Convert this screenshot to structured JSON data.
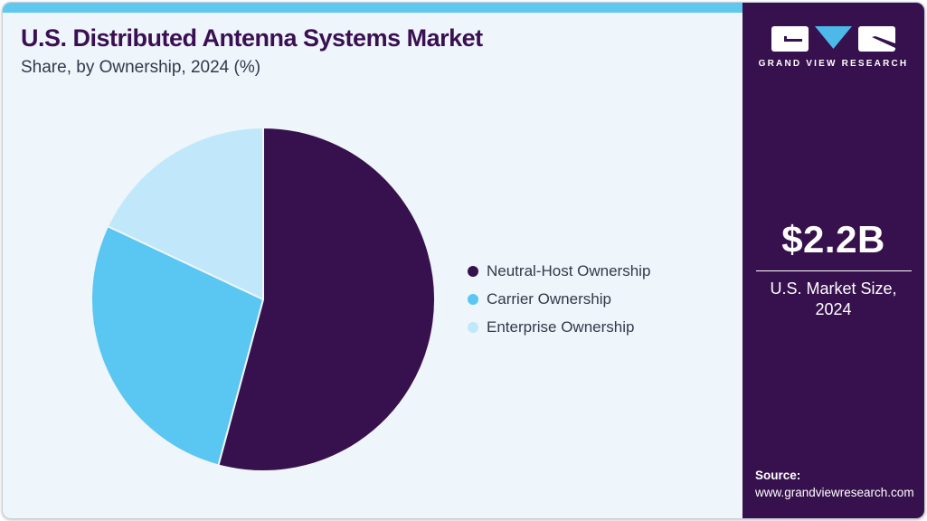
{
  "header": {
    "title": "U.S. Distributed Antenna Systems Market",
    "subtitle": "Share, by Ownership, 2024 (%)"
  },
  "chart_data": {
    "type": "pie",
    "title": "U.S. Distributed Antenna Systems Market Share, by Ownership, 2024 (%)",
    "categories": [
      "Neutral-Host Ownership",
      "Carrier Ownership",
      "Enterprise Ownership"
    ],
    "values": [
      54.2,
      27.8,
      18.0
    ],
    "units": "%",
    "colors": [
      "#37114d",
      "#5ac6f2",
      "#c0e8fa"
    ],
    "start_angle_deg": 0,
    "direction": "clockwise",
    "legend_position": "right",
    "data_labels": false
  },
  "sidebar": {
    "logo_brand": "GRAND VIEW RESEARCH",
    "market_size": {
      "value": "$2.2B",
      "label_line1": "U.S. Market Size,",
      "label_line2": "2024"
    },
    "source": {
      "label": "Source:",
      "url": "www.grandviewresearch.com"
    }
  },
  "colors": {
    "accent_bar": "#60c8ee",
    "brand_purple_title": "#3b1053",
    "sidebar_background": "#37114d",
    "card_background": "#eef5fb",
    "logo_triangle_blue": "#4cb9e9",
    "legend_text": "#333a49"
  }
}
